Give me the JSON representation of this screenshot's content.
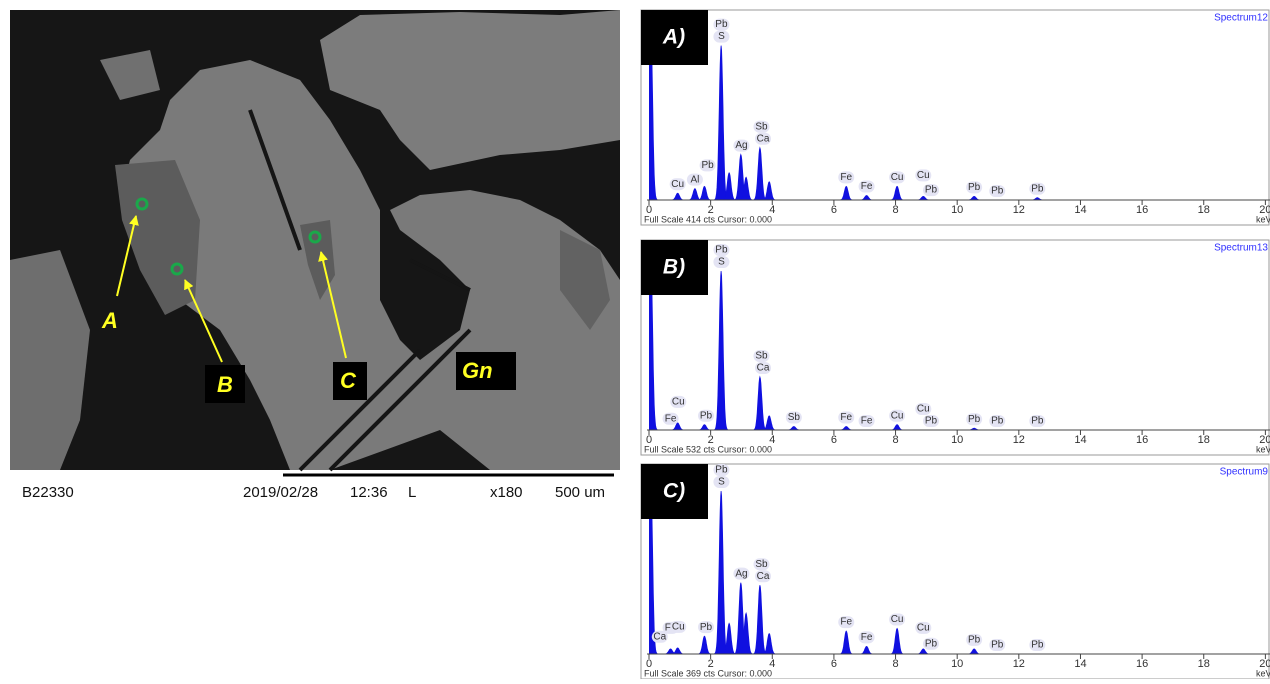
{
  "sem_image": {
    "markers": [
      "A",
      "B",
      "C"
    ],
    "phase_label": "Gn",
    "footer": {
      "sample": "B22330",
      "date": "2019/02/28",
      "time": "12:36",
      "mode": "L",
      "magnification": "x180",
      "scale": "500 um"
    }
  },
  "spectra": [
    {
      "panel_label": "A)",
      "title": "Spectrum12",
      "x_label": "keV",
      "footer": "Full Scale 414 cts Cursor: 0.000",
      "ylim": [
        0,
        414
      ],
      "xlim": [
        0,
        20.15
      ],
      "xticks": [
        0,
        2,
        4,
        6,
        8,
        10,
        12,
        14,
        16,
        18,
        20
      ],
      "peaks": [
        {
          "kev": 0.05,
          "cts": 414
        },
        {
          "kev": 0.93,
          "cts": 15
        },
        {
          "kev": 1.49,
          "cts": 25
        },
        {
          "kev": 1.8,
          "cts": 30
        },
        {
          "kev": 2.34,
          "cts": 340
        },
        {
          "kev": 2.6,
          "cts": 60
        },
        {
          "kev": 2.98,
          "cts": 100
        },
        {
          "kev": 3.15,
          "cts": 50
        },
        {
          "kev": 3.6,
          "cts": 115
        },
        {
          "kev": 3.9,
          "cts": 40
        },
        {
          "kev": 6.4,
          "cts": 30
        },
        {
          "kev": 7.06,
          "cts": 10
        },
        {
          "kev": 8.05,
          "cts": 30
        },
        {
          "kev": 8.9,
          "cts": 8
        },
        {
          "kev": 10.55,
          "cts": 8
        },
        {
          "kev": 12.6,
          "cts": 5
        }
      ],
      "element_labels": [
        {
          "text": "Cu",
          "kev": 0.93
        },
        {
          "text": "Al",
          "kev": 1.49
        },
        {
          "text": "Pb",
          "kev": 1.9
        },
        {
          "text": "S",
          "kev": 2.35
        },
        {
          "text": "Pb",
          "kev": 2.35
        },
        {
          "text": "Ag",
          "kev": 3.0
        },
        {
          "text": "Ca",
          "kev": 3.7
        },
        {
          "text": "Sb",
          "kev": 3.65
        },
        {
          "text": "Fe",
          "kev": 6.4
        },
        {
          "text": "Fe",
          "kev": 7.06
        },
        {
          "text": "Cu",
          "kev": 8.05
        },
        {
          "text": "Pb",
          "kev": 9.15
        },
        {
          "text": "Cu",
          "kev": 8.9
        },
        {
          "text": "Pb",
          "kev": 10.55
        },
        {
          "text": "Pb",
          "kev": 11.3
        },
        {
          "text": "Pb",
          "kev": 12.6
        }
      ]
    },
    {
      "panel_label": "B)",
      "title": "Spectrum13",
      "x_label": "keV",
      "footer": "Full Scale 532 cts Cursor: 0.000",
      "ylim": [
        0,
        532
      ],
      "xlim": [
        0,
        20.15
      ],
      "xticks": [
        0,
        2,
        4,
        6,
        8,
        10,
        12,
        14,
        16,
        18,
        20
      ],
      "peaks": [
        {
          "kev": 0.05,
          "cts": 532
        },
        {
          "kev": 0.93,
          "cts": 20
        },
        {
          "kev": 1.8,
          "cts": 15
        },
        {
          "kev": 2.34,
          "cts": 450
        },
        {
          "kev": 3.6,
          "cts": 150
        },
        {
          "kev": 3.9,
          "cts": 40
        },
        {
          "kev": 4.7,
          "cts": 10
        },
        {
          "kev": 6.4,
          "cts": 10
        },
        {
          "kev": 8.05,
          "cts": 15
        },
        {
          "kev": 10.55,
          "cts": 5
        }
      ],
      "element_labels": [
        {
          "text": "Fe",
          "kev": 0.7
        },
        {
          "text": "Cu",
          "kev": 0.95
        },
        {
          "text": "Pb",
          "kev": 1.85
        },
        {
          "text": "S",
          "kev": 2.35
        },
        {
          "text": "Pb",
          "kev": 2.35
        },
        {
          "text": "Ca",
          "kev": 3.7
        },
        {
          "text": "Sb",
          "kev": 3.65
        },
        {
          "text": "Sb",
          "kev": 4.7
        },
        {
          "text": "Fe",
          "kev": 6.4
        },
        {
          "text": "Fe",
          "kev": 7.06
        },
        {
          "text": "Cu",
          "kev": 8.05
        },
        {
          "text": "Pb",
          "kev": 9.15
        },
        {
          "text": "Cu",
          "kev": 8.9
        },
        {
          "text": "Pb",
          "kev": 10.55
        },
        {
          "text": "Pb",
          "kev": 11.3
        },
        {
          "text": "Pb",
          "kev": 12.6
        }
      ]
    },
    {
      "panel_label": "C)",
      "title": "Spectrum9",
      "x_label": "keV",
      "footer": "Full Scale 369 cts Cursor: 0.000",
      "ylim": [
        0,
        369
      ],
      "xlim": [
        0,
        20.15
      ],
      "xticks": [
        0,
        2,
        4,
        6,
        8,
        10,
        12,
        14,
        16,
        18,
        20
      ],
      "peaks": [
        {
          "kev": 0.05,
          "cts": 369
        },
        {
          "kev": 0.7,
          "cts": 10
        },
        {
          "kev": 0.93,
          "cts": 12
        },
        {
          "kev": 1.8,
          "cts": 35
        },
        {
          "kev": 2.34,
          "cts": 320
        },
        {
          "kev": 2.6,
          "cts": 60
        },
        {
          "kev": 2.98,
          "cts": 140
        },
        {
          "kev": 3.15,
          "cts": 80
        },
        {
          "kev": 3.6,
          "cts": 135
        },
        {
          "kev": 3.9,
          "cts": 40
        },
        {
          "kev": 6.4,
          "cts": 45
        },
        {
          "kev": 7.06,
          "cts": 15
        },
        {
          "kev": 8.05,
          "cts": 50
        },
        {
          "kev": 8.9,
          "cts": 10
        },
        {
          "kev": 10.55,
          "cts": 10
        }
      ],
      "element_labels": [
        {
          "text": "Ca",
          "kev": 0.35
        },
        {
          "text": "Fe",
          "kev": 0.7
        },
        {
          "text": "Cu",
          "kev": 0.95
        },
        {
          "text": "Pb",
          "kev": 1.85
        },
        {
          "text": "S",
          "kev": 2.35
        },
        {
          "text": "Pb",
          "kev": 2.35
        },
        {
          "text": "Ag",
          "kev": 3.0
        },
        {
          "text": "Ca",
          "kev": 3.7
        },
        {
          "text": "Sb",
          "kev": 3.65
        },
        {
          "text": "Fe",
          "kev": 6.4
        },
        {
          "text": "Fe",
          "kev": 7.06
        },
        {
          "text": "Cu",
          "kev": 8.05
        },
        {
          "text": "Pb",
          "kev": 9.15
        },
        {
          "text": "Cu",
          "kev": 8.9
        },
        {
          "text": "Pb",
          "kev": 10.55
        },
        {
          "text": "Pb",
          "kev": 11.3
        },
        {
          "text": "Pb",
          "kev": 12.6
        }
      ]
    }
  ]
}
